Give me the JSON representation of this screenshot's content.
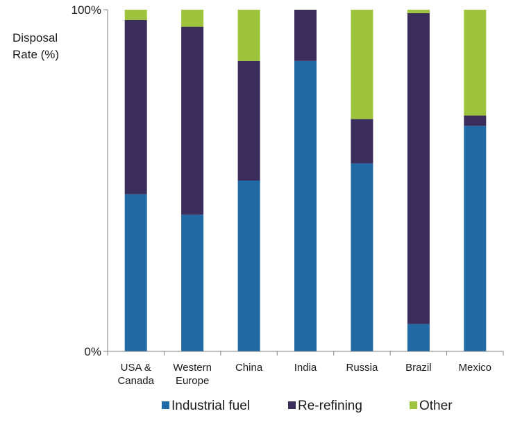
{
  "chart_data": {
    "type": "bar",
    "stacked": true,
    "ylabel_lines": [
      "Disposal",
      "Rate (%)"
    ],
    "ylim": [
      0,
      100
    ],
    "y_ticks": [
      {
        "value": 0,
        "label": "0%"
      },
      {
        "value": 100,
        "label": "100%"
      }
    ],
    "categories": [
      [
        "USA &",
        "Canada"
      ],
      [
        "Western",
        "Europe"
      ],
      [
        "China"
      ],
      [
        "India"
      ],
      [
        "Russia"
      ],
      [
        "Brazil"
      ],
      [
        "Mexico"
      ]
    ],
    "series": [
      {
        "name": "Industrial fuel",
        "color": "#1f6aa5",
        "values": [
          46,
          40,
          50,
          85,
          55,
          8,
          66
        ]
      },
      {
        "name": "Re-refining",
        "color": "#3b2d5c",
        "values": [
          51,
          55,
          35,
          15,
          13,
          91,
          3
        ]
      },
      {
        "name": "Other",
        "color": "#9dc43c",
        "values": [
          3,
          5,
          15,
          0,
          32,
          1,
          31
        ]
      }
    ],
    "legend_position": "bottom",
    "grid": false
  }
}
